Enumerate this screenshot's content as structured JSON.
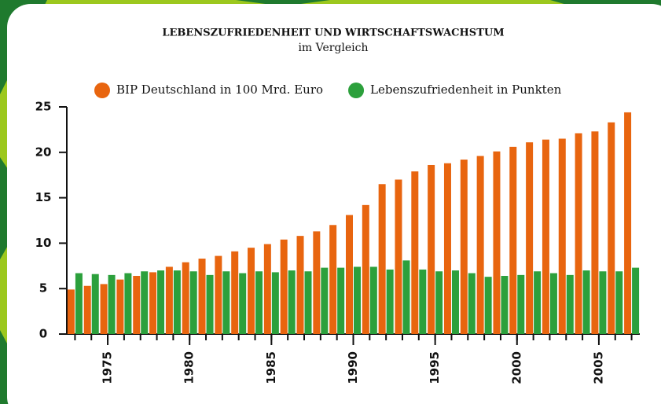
{
  "chart_data": {
    "type": "bar",
    "title": "LEBENSZUFRIEDENHEIT UND WIRTSCHAFTSWACHSTUM",
    "subtitle": "im Vergleich",
    "x": [
      1973,
      1974,
      1975,
      1976,
      1977,
      1978,
      1979,
      1980,
      1981,
      1982,
      1983,
      1984,
      1985,
      1986,
      1987,
      1988,
      1989,
      1990,
      1991,
      1992,
      1993,
      1994,
      1995,
      1996,
      1997,
      1998,
      1999,
      2000,
      2001,
      2002,
      2003,
      2004,
      2005,
      2006,
      2007
    ],
    "xlim": [
      1972.5,
      2007.5
    ],
    "xticks": [
      1975,
      1980,
      1985,
      1990,
      1995,
      2000,
      2005
    ],
    "ylim": [
      0,
      25
    ],
    "yticks": [
      0,
      5,
      10,
      15,
      20,
      25
    ],
    "legend": "top",
    "series": [
      {
        "name": "BIP Deutschland in 100 Mrd. Euro",
        "color": "#e8650f",
        "values": [
          4.9,
          5.3,
          5.5,
          6.0,
          6.4,
          6.8,
          7.4,
          7.9,
          8.3,
          8.6,
          9.1,
          9.5,
          9.9,
          10.4,
          10.8,
          11.3,
          12.0,
          13.1,
          14.2,
          16.5,
          17.0,
          17.9,
          18.6,
          18.8,
          19.2,
          19.6,
          20.1,
          20.6,
          21.1,
          21.4,
          21.5,
          22.1,
          22.3,
          23.3,
          24.4
        ]
      },
      {
        "name": "Lebenszufriedenheit in Punkten",
        "color": "#2ca03c",
        "values": [
          6.7,
          6.6,
          6.5,
          6.7,
          6.9,
          7.0,
          7.0,
          6.9,
          6.5,
          6.9,
          6.7,
          6.9,
          6.8,
          7.0,
          6.9,
          7.3,
          7.3,
          7.4,
          7.4,
          7.1,
          8.1,
          7.1,
          6.9,
          7.0,
          6.7,
          6.3,
          6.4,
          6.5,
          6.9,
          6.7,
          6.5,
          7.0,
          6.9,
          6.9,
          7.3
        ]
      }
    ]
  }
}
